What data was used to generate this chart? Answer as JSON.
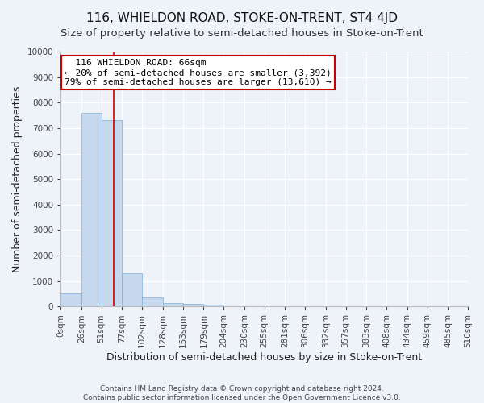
{
  "title": "116, WHIELDON ROAD, STOKE-ON-TRENT, ST4 4JD",
  "subtitle": "Size of property relative to semi-detached houses in Stoke-on-Trent",
  "xlabel": "Distribution of semi-detached houses by size in Stoke-on-Trent",
  "ylabel": "Number of semi-detached properties",
  "footer": "Contains HM Land Registry data © Crown copyright and database right 2024.\nContains public sector information licensed under the Open Government Licence v3.0.",
  "annotation_title": "116 WHIELDON ROAD: 66sqm",
  "annotation_line1": "← 20% of semi-detached houses are smaller (3,392)",
  "annotation_line2": "79% of semi-detached houses are larger (13,610) →",
  "property_size_sqm": 66,
  "bin_edges": [
    0,
    26,
    51,
    77,
    102,
    128,
    153,
    179,
    204,
    230,
    255,
    281,
    306,
    332,
    357,
    383,
    408,
    434,
    459,
    485,
    510
  ],
  "bar_values": [
    500,
    7600,
    7300,
    1300,
    350,
    130,
    100,
    60,
    0,
    0,
    0,
    0,
    0,
    0,
    0,
    0,
    0,
    0,
    0,
    0
  ],
  "bar_color": "#c5d8ed",
  "bar_edge_color": "#7bafd4",
  "vline_color": "#cc0000",
  "annotation_box_edge_color": "#cc0000",
  "background_color": "#eef2f9",
  "ylim": [
    0,
    10000
  ],
  "ytick_step": 1000,
  "grid_color": "#ffffff",
  "title_fontsize": 11,
  "subtitle_fontsize": 9.5,
  "label_fontsize": 9,
  "tick_fontsize": 7.5,
  "footer_fontsize": 6.5,
  "annotation_fontsize": 8
}
